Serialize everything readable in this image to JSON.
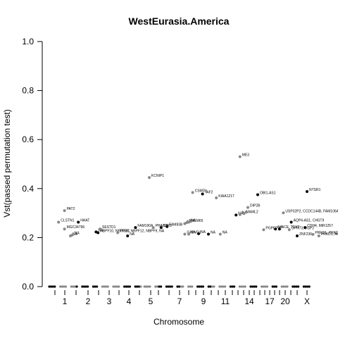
{
  "chart_data": {
    "type": "scatter",
    "title": "WestEurasia.America",
    "xlabel": "Chromosome",
    "ylabel": "Vst(passed permutation test)",
    "ylim": [
      0,
      1
    ],
    "yticks": [
      "0.0",
      "0.2",
      "0.4",
      "0.6",
      "0.8",
      "1.0"
    ],
    "x_tick_labels": [
      "1",
      "2",
      "3",
      "4",
      "5",
      "7",
      "9",
      "11",
      "14",
      "17",
      "20",
      "X"
    ],
    "grid": false,
    "colors": {
      "odd_chromosome": "#000000",
      "even_chromosome": "#888888"
    },
    "points": [
      {
        "x": 0.4,
        "y": 0.263,
        "label": "CLSTN1"
      },
      {
        "x": 0.7,
        "y": 0.31,
        "label": "PAT2"
      },
      {
        "x": 0.7,
        "y": 0.235,
        "label": "MGC34796"
      },
      {
        "x": 1.0,
        "y": 0.207,
        "label": "NA"
      },
      {
        "x": 1.1,
        "y": 0.211,
        "label": "NA"
      },
      {
        "x": 1.4,
        "y": 0.263,
        "label": "HHAT"
      },
      {
        "x": 2.3,
        "y": 0.223,
        "label": "NA"
      },
      {
        "x": 2.4,
        "y": 0.22,
        "label": "NBPF10, NBPF20, NBPF12, NBPF9, NA"
      },
      {
        "x": 2.5,
        "y": 0.235,
        "label": "SESTD1"
      },
      {
        "x": 3.4,
        "y": 0.22,
        "label": "TRRC"
      },
      {
        "x": 3.9,
        "y": 0.207,
        "label": "NA"
      },
      {
        "x": 4.3,
        "y": 0.241,
        "label": "FAM190A"
      },
      {
        "x": 5.0,
        "y": 0.445,
        "label": "KCNIP1"
      },
      {
        "x": 5.2,
        "y": 0.241,
        "label": "PHACTR1"
      },
      {
        "x": 5.6,
        "y": 0.241,
        "label": "NA"
      },
      {
        "x": 5.9,
        "y": 0.245,
        "label": "FAM83B"
      },
      {
        "x": 6.8,
        "y": 0.257,
        "label": "NA"
      },
      {
        "x": 6.9,
        "y": 0.261,
        "label": "TMEM65"
      },
      {
        "x": 7.0,
        "y": 0.263,
        "label": "NA"
      },
      {
        "x": 6.8,
        "y": 0.214,
        "label": "GAPVD1"
      },
      {
        "x": 7.0,
        "y": 0.214,
        "label": "NA"
      },
      {
        "x": 7.5,
        "y": 0.216,
        "label": "NA"
      },
      {
        "x": 8.0,
        "y": 0.214,
        "label": "NA"
      },
      {
        "x": 8.6,
        "y": 0.214,
        "label": "NA"
      },
      {
        "x": 7.2,
        "y": 0.384,
        "label": "CSMD1"
      },
      {
        "x": 7.7,
        "y": 0.378,
        "label": "TAF2"
      },
      {
        "x": 8.4,
        "y": 0.362,
        "label": "KIAA1217"
      },
      {
        "x": 9.6,
        "y": 0.53,
        "label": "ME3"
      },
      {
        "x": 9.4,
        "y": 0.292,
        "label": "NA"
      },
      {
        "x": 9.6,
        "y": 0.294,
        "label": "NA"
      },
      {
        "x": 9.8,
        "y": 0.298,
        "label": "MAML2"
      },
      {
        "x": 10.0,
        "y": 0.323,
        "label": "DIP2B"
      },
      {
        "x": 10.5,
        "y": 0.375,
        "label": "OBI1-AS1"
      },
      {
        "x": 10.8,
        "y": 0.232,
        "label": "PGPEP1L"
      },
      {
        "x": 11.4,
        "y": 0.235,
        "label": "NA"
      },
      {
        "x": 11.6,
        "y": 0.235,
        "label": "ACE, TEX2"
      },
      {
        "x": 11.8,
        "y": 0.301,
        "label": "USP32P2, CCDC144B, FAM106A"
      },
      {
        "x": 12.2,
        "y": 0.263,
        "label": "AQP4-AS1, CHST9"
      },
      {
        "x": 12.1,
        "y": 0.232,
        "label": "GPR73, HSP2"
      },
      {
        "x": 12.5,
        "y": 0.207,
        "label": "ZNF236"
      },
      {
        "x": 12.9,
        "y": 0.241,
        "label": "CDH4, MIR1257"
      },
      {
        "x": 13.0,
        "y": 0.388,
        "label": "NTSR1"
      },
      {
        "x": 13.3,
        "y": 0.213,
        "label": "PRKD1, PRKD3"
      },
      {
        "x": 13.6,
        "y": 0.207,
        "label": "PRKD1, ARHGAP8"
      }
    ]
  }
}
